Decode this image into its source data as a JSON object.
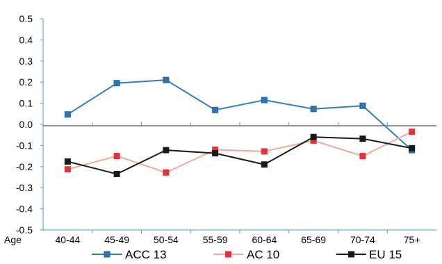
{
  "chart_data": {
    "type": "line",
    "xlabel": "Age",
    "categories": [
      "40-44",
      "45-49",
      "50-54",
      "55-59",
      "60-64",
      "65-69",
      "70-74",
      "75+"
    ],
    "ylim": [
      -0.5,
      0.5
    ],
    "yticks": [
      "0.5",
      "0.4",
      "0.3",
      "0.2",
      "0.1",
      "0.0",
      "-0.1",
      "-0.2",
      "-0.3",
      "-0.4",
      "-0.5"
    ],
    "ytick_values": [
      0.5,
      0.4,
      0.3,
      0.2,
      0.1,
      0.0,
      -0.1,
      -0.2,
      -0.3,
      -0.4,
      -0.5
    ],
    "grid": false,
    "legend_position": "bottom",
    "series": [
      {
        "name": "ACC 13",
        "color": "#2e7fc0",
        "marker_color": "#2a78b8",
        "values": [
          0.047,
          0.195,
          0.21,
          0.068,
          0.115,
          0.073,
          0.088,
          -0.122
        ]
      },
      {
        "name": "AC 10",
        "color": "#f4a898",
        "marker_color": "#e8303a",
        "values": [
          -0.213,
          -0.15,
          -0.228,
          -0.12,
          -0.128,
          -0.077,
          -0.15,
          -0.035
        ]
      },
      {
        "name": "EU 15",
        "color": "#1a1a1a",
        "marker_color": "#1a1a1a",
        "values": [
          -0.176,
          -0.235,
          -0.122,
          -0.137,
          -0.19,
          -0.06,
          -0.068,
          -0.113
        ]
      }
    ]
  }
}
